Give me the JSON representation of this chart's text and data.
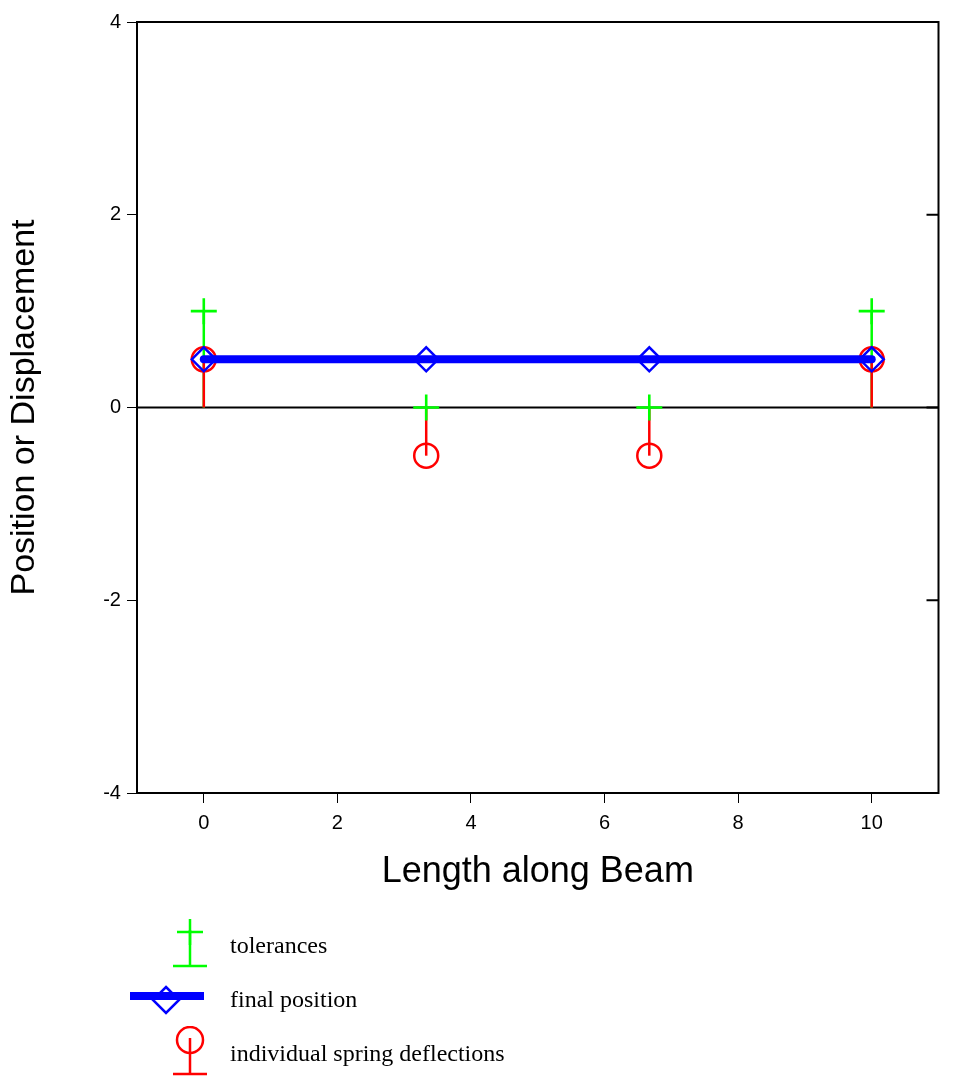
{
  "chart_data": {
    "type": "line",
    "xlabel": "Length along Beam",
    "ylabel": "Position or Displacement",
    "x": [
      0,
      3.33,
      6.67,
      10
    ],
    "xlim": [
      -1,
      11
    ],
    "xticks": [
      0,
      2,
      4,
      6,
      8,
      10
    ],
    "ylim": [
      -4,
      4
    ],
    "yticks": [
      -4,
      -2,
      0,
      2,
      4
    ],
    "legend": "bottom left",
    "ref_lines": [
      {
        "axis": "y",
        "value": 0,
        "color": "#000000"
      }
    ],
    "series": [
      {
        "name": "tolerances",
        "type": "lollipop",
        "color": "#00ff00",
        "marker": "cross",
        "values": [
          1,
          0,
          0,
          1
        ]
      },
      {
        "name": "final position",
        "type": "line",
        "color": "#0000ff",
        "marker": "diamond",
        "values": [
          0.5,
          0.5,
          0.5,
          0.5
        ]
      },
      {
        "name": "individual spring deflections",
        "type": "lollipop",
        "color": "#ff0000",
        "marker": "circle",
        "values": [
          0.5,
          -0.5,
          -0.5,
          0.5
        ]
      }
    ]
  }
}
